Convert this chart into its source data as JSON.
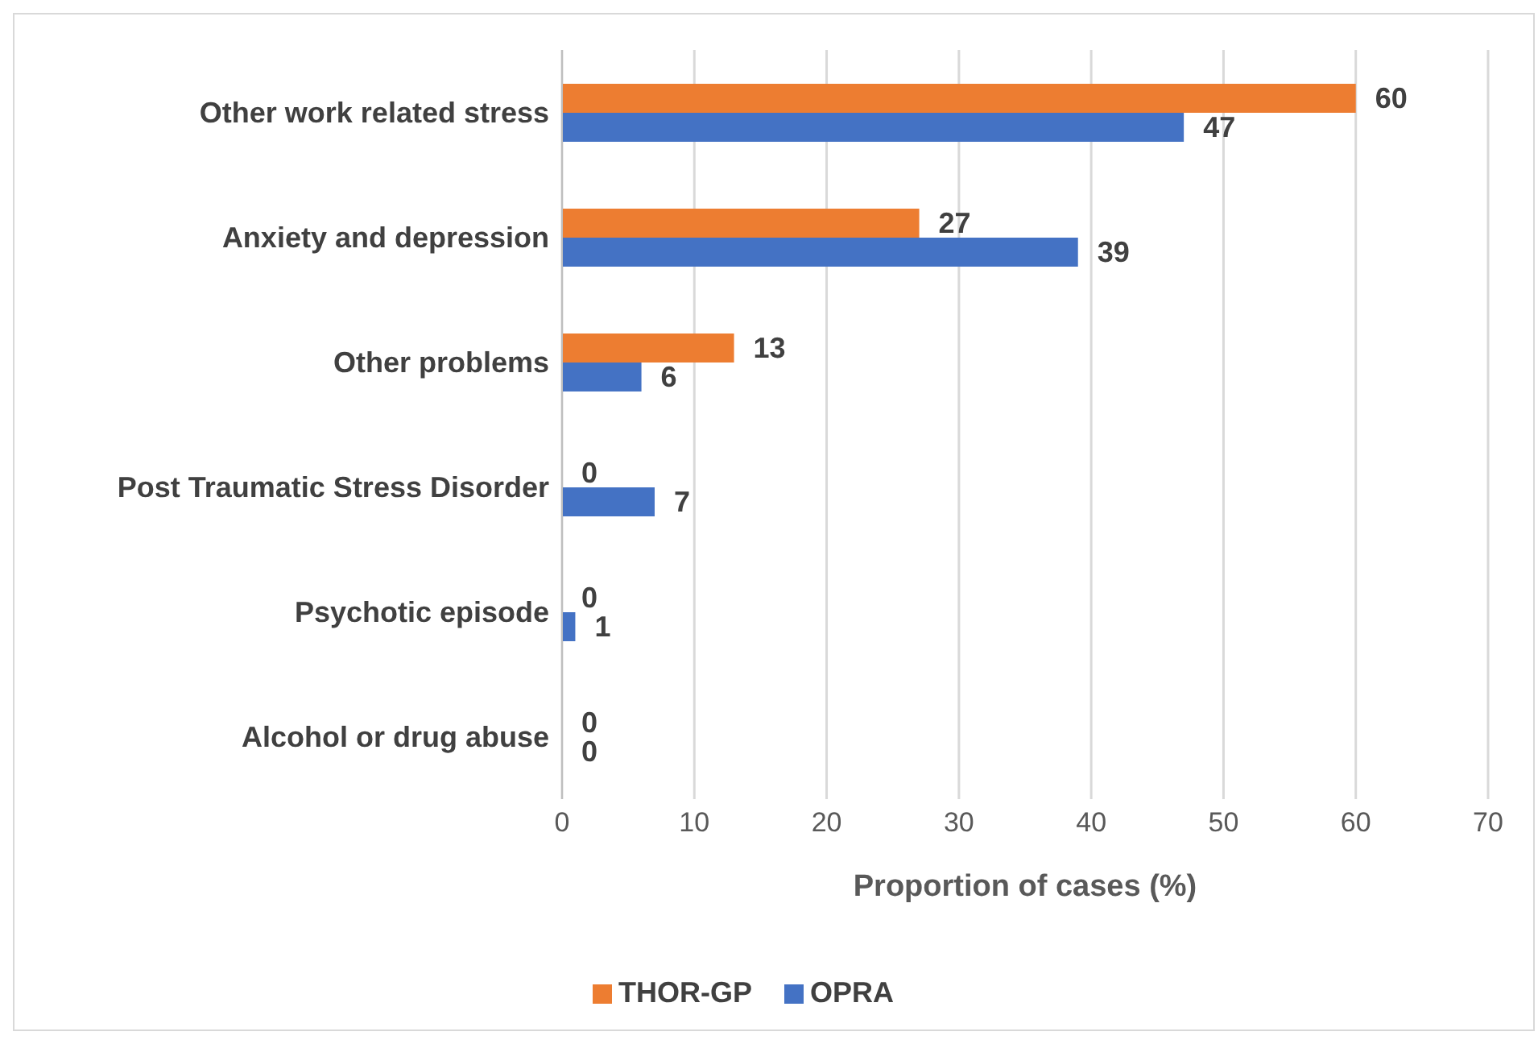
{
  "chart_data": {
    "type": "bar",
    "orientation": "horizontal",
    "xlabel": "Proportion of cases (%)",
    "categories": [
      "Other work related stress",
      "Anxiety and depression",
      "Other problems",
      "Post Traumatic Stress Disorder",
      "Psychotic episode",
      "Alcohol or drug abuse"
    ],
    "series": [
      {
        "name": "THOR-GP",
        "color": "#ed7d31",
        "values": [
          60,
          27,
          13,
          0,
          0,
          0
        ]
      },
      {
        "name": "OPRA",
        "color": "#4472c4",
        "values": [
          47,
          39,
          6,
          7,
          1,
          0
        ]
      }
    ],
    "xlim": [
      0,
      70
    ],
    "xticks": [
      0,
      10,
      20,
      30,
      40,
      50,
      60,
      70
    ],
    "grid": "x",
    "legend": "bottom",
    "data_labels": true
  }
}
